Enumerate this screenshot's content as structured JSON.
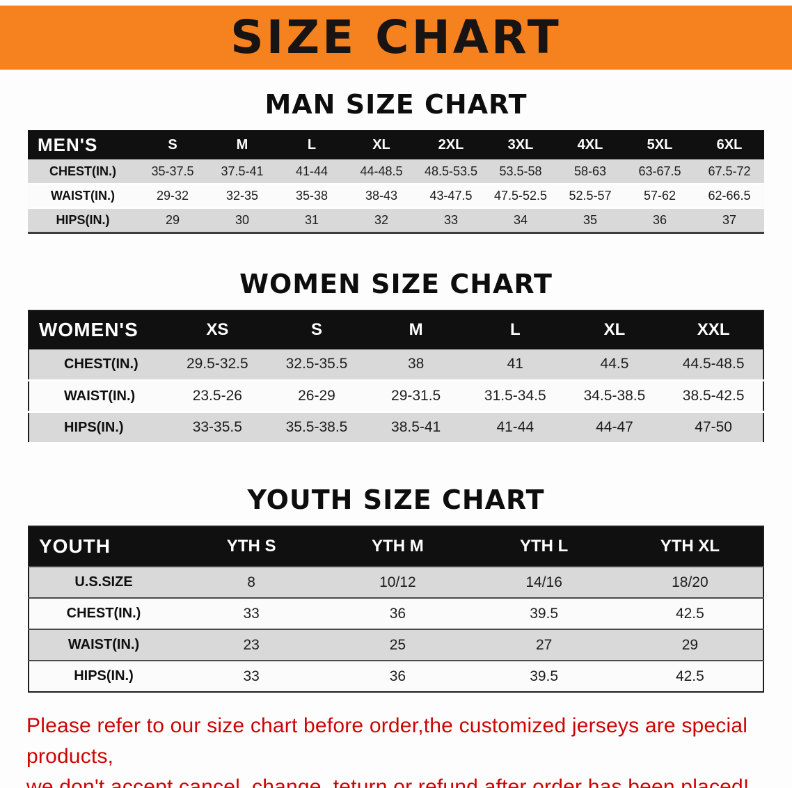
{
  "banner": {
    "title": "SIZE CHART"
  },
  "colors": {
    "banner_bg": "#f5821e",
    "table_header_bg": "#101010",
    "row_alt_bg": "#d9d9d9",
    "disclaimer_red": "#cd0404"
  },
  "men": {
    "heading": "MAN SIZE CHART",
    "corner": "MEN'S",
    "sizes": [
      "S",
      "M",
      "L",
      "XL",
      "2XL",
      "3XL",
      "4XL",
      "5XL",
      "6XL"
    ],
    "rows": [
      {
        "label": "CHEST(IN.)",
        "values": [
          "35-37.5",
          "37.5-41",
          "41-44",
          "44-48.5",
          "48.5-53.5",
          "53.5-58",
          "58-63",
          "63-67.5",
          "67.5-72"
        ]
      },
      {
        "label": "WAIST(IN.)",
        "values": [
          "29-32",
          "32-35",
          "35-38",
          "38-43",
          "43-47.5",
          "47.5-52.5",
          "52.5-57",
          "57-62",
          "62-66.5"
        ]
      },
      {
        "label": "HIPS(IN.)",
        "values": [
          "29",
          "30",
          "31",
          "32",
          "33",
          "34",
          "35",
          "36",
          "37"
        ]
      }
    ]
  },
  "women": {
    "heading": "WOMEN SIZE CHART",
    "corner": "WOMEN'S",
    "sizes": [
      "XS",
      "S",
      "M",
      "L",
      "XL",
      "XXL"
    ],
    "rows": [
      {
        "label": "CHEST(IN.)",
        "values": [
          "29.5-32.5",
          "32.5-35.5",
          "38",
          "41",
          "44.5",
          "44.5-48.5"
        ]
      },
      {
        "label": "WAIST(IN.)",
        "values": [
          "23.5-26",
          "26-29",
          "29-31.5",
          "31.5-34.5",
          "34.5-38.5",
          "38.5-42.5"
        ]
      },
      {
        "label": "HIPS(IN.)",
        "values": [
          "33-35.5",
          "35.5-38.5",
          "38.5-41",
          "41-44",
          "44-47",
          "47-50"
        ]
      }
    ]
  },
  "youth": {
    "heading": "YOUTH SIZE CHART",
    "corner": "YOUTH",
    "sizes": [
      "YTH S",
      "YTH M",
      "YTH L",
      "YTH XL"
    ],
    "rows": [
      {
        "label": "U.S.SIZE",
        "values": [
          "8",
          "10/12",
          "14/16",
          "18/20"
        ]
      },
      {
        "label": "CHEST(IN.)",
        "values": [
          "33",
          "36",
          "39.5",
          "42.5"
        ]
      },
      {
        "label": "WAIST(IN.)",
        "values": [
          "23",
          "25",
          "27",
          "29"
        ]
      },
      {
        "label": "HIPS(IN.)",
        "values": [
          "33",
          "36",
          "39.5",
          "42.5"
        ]
      }
    ]
  },
  "disclaimer": {
    "line1": "Please refer to our size chart before order,the customized jerseys are special products,",
    "line2": "we don't accept cancel, change, teturn or refund after order has been placed!"
  }
}
